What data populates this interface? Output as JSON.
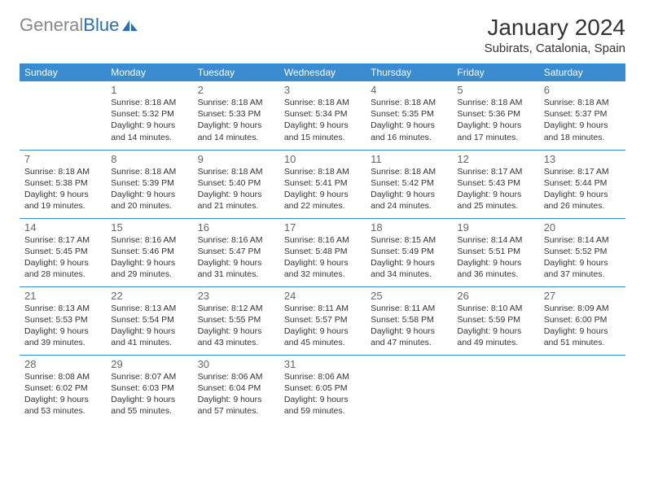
{
  "logo": {
    "part1": "General",
    "part2": "Blue"
  },
  "title": "January 2024",
  "location": "Subirats, Catalonia, Spain",
  "header_bg": "#3b8bd0",
  "border_color": "#3b8bd0",
  "weekdays": [
    "Sunday",
    "Monday",
    "Tuesday",
    "Wednesday",
    "Thursday",
    "Friday",
    "Saturday"
  ],
  "first_weekday_index": 1,
  "days": [
    {
      "n": "1",
      "sunrise": "8:18 AM",
      "sunset": "5:32 PM",
      "daylight": "9 hours and 14 minutes."
    },
    {
      "n": "2",
      "sunrise": "8:18 AM",
      "sunset": "5:33 PM",
      "daylight": "9 hours and 14 minutes."
    },
    {
      "n": "3",
      "sunrise": "8:18 AM",
      "sunset": "5:34 PM",
      "daylight": "9 hours and 15 minutes."
    },
    {
      "n": "4",
      "sunrise": "8:18 AM",
      "sunset": "5:35 PM",
      "daylight": "9 hours and 16 minutes."
    },
    {
      "n": "5",
      "sunrise": "8:18 AM",
      "sunset": "5:36 PM",
      "daylight": "9 hours and 17 minutes."
    },
    {
      "n": "6",
      "sunrise": "8:18 AM",
      "sunset": "5:37 PM",
      "daylight": "9 hours and 18 minutes."
    },
    {
      "n": "7",
      "sunrise": "8:18 AM",
      "sunset": "5:38 PM",
      "daylight": "9 hours and 19 minutes."
    },
    {
      "n": "8",
      "sunrise": "8:18 AM",
      "sunset": "5:39 PM",
      "daylight": "9 hours and 20 minutes."
    },
    {
      "n": "9",
      "sunrise": "8:18 AM",
      "sunset": "5:40 PM",
      "daylight": "9 hours and 21 minutes."
    },
    {
      "n": "10",
      "sunrise": "8:18 AM",
      "sunset": "5:41 PM",
      "daylight": "9 hours and 22 minutes."
    },
    {
      "n": "11",
      "sunrise": "8:18 AM",
      "sunset": "5:42 PM",
      "daylight": "9 hours and 24 minutes."
    },
    {
      "n": "12",
      "sunrise": "8:17 AM",
      "sunset": "5:43 PM",
      "daylight": "9 hours and 25 minutes."
    },
    {
      "n": "13",
      "sunrise": "8:17 AM",
      "sunset": "5:44 PM",
      "daylight": "9 hours and 26 minutes."
    },
    {
      "n": "14",
      "sunrise": "8:17 AM",
      "sunset": "5:45 PM",
      "daylight": "9 hours and 28 minutes."
    },
    {
      "n": "15",
      "sunrise": "8:16 AM",
      "sunset": "5:46 PM",
      "daylight": "9 hours and 29 minutes."
    },
    {
      "n": "16",
      "sunrise": "8:16 AM",
      "sunset": "5:47 PM",
      "daylight": "9 hours and 31 minutes."
    },
    {
      "n": "17",
      "sunrise": "8:16 AM",
      "sunset": "5:48 PM",
      "daylight": "9 hours and 32 minutes."
    },
    {
      "n": "18",
      "sunrise": "8:15 AM",
      "sunset": "5:49 PM",
      "daylight": "9 hours and 34 minutes."
    },
    {
      "n": "19",
      "sunrise": "8:14 AM",
      "sunset": "5:51 PM",
      "daylight": "9 hours and 36 minutes."
    },
    {
      "n": "20",
      "sunrise": "8:14 AM",
      "sunset": "5:52 PM",
      "daylight": "9 hours and 37 minutes."
    },
    {
      "n": "21",
      "sunrise": "8:13 AM",
      "sunset": "5:53 PM",
      "daylight": "9 hours and 39 minutes."
    },
    {
      "n": "22",
      "sunrise": "8:13 AM",
      "sunset": "5:54 PM",
      "daylight": "9 hours and 41 minutes."
    },
    {
      "n": "23",
      "sunrise": "8:12 AM",
      "sunset": "5:55 PM",
      "daylight": "9 hours and 43 minutes."
    },
    {
      "n": "24",
      "sunrise": "8:11 AM",
      "sunset": "5:57 PM",
      "daylight": "9 hours and 45 minutes."
    },
    {
      "n": "25",
      "sunrise": "8:11 AM",
      "sunset": "5:58 PM",
      "daylight": "9 hours and 47 minutes."
    },
    {
      "n": "26",
      "sunrise": "8:10 AM",
      "sunset": "5:59 PM",
      "daylight": "9 hours and 49 minutes."
    },
    {
      "n": "27",
      "sunrise": "8:09 AM",
      "sunset": "6:00 PM",
      "daylight": "9 hours and 51 minutes."
    },
    {
      "n": "28",
      "sunrise": "8:08 AM",
      "sunset": "6:02 PM",
      "daylight": "9 hours and 53 minutes."
    },
    {
      "n": "29",
      "sunrise": "8:07 AM",
      "sunset": "6:03 PM",
      "daylight": "9 hours and 55 minutes."
    },
    {
      "n": "30",
      "sunrise": "8:06 AM",
      "sunset": "6:04 PM",
      "daylight": "9 hours and 57 minutes."
    },
    {
      "n": "31",
      "sunrise": "8:06 AM",
      "sunset": "6:05 PM",
      "daylight": "9 hours and 59 minutes."
    }
  ],
  "labels": {
    "sunrise": "Sunrise:",
    "sunset": "Sunset:",
    "daylight": "Daylight:"
  }
}
